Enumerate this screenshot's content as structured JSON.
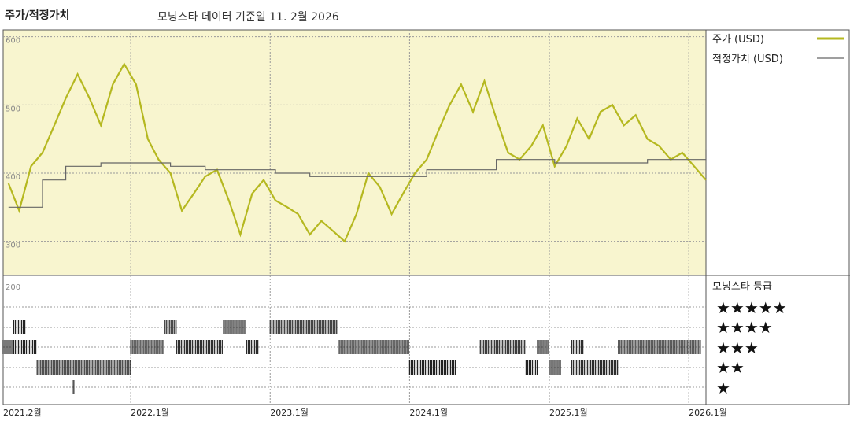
{
  "header": {
    "title": "주가/적정가치",
    "subtitle": "모닝스타 데이터 기준일 11. 2월 2026"
  },
  "colors": {
    "price": "#b5b820",
    "fair_value": "#666666",
    "plot_bg": "#f8f5cf",
    "grid": "#999999",
    "bars": "#222222"
  },
  "legend": {
    "price_label": "주가 (USD)",
    "fair_value_label": "적정가치 (USD)",
    "rating_title": "모닝스타 등급",
    "stars": [
      "★★★★★",
      "★★★★",
      "★★★",
      "★★",
      "★"
    ]
  },
  "chart_data": {
    "type": "line",
    "title": "주가/적정가치",
    "ylim": [
      250,
      610
    ],
    "yticks": [
      "600",
      "500",
      "400",
      "300"
    ],
    "rating_axis_label": "200",
    "xtick_labels": [
      "2021,2월",
      "2022,1월",
      "2023,1월",
      "2024,1월",
      "2025,1월",
      "2026,1월"
    ],
    "x_dates": [
      "2021-02",
      "2022-01",
      "2023-01",
      "2024-01",
      "2025-01",
      "2026-01"
    ],
    "series": [
      {
        "name": "주가 (USD)",
        "points": [
          [
            "2021-02",
            385
          ],
          [
            "2021-03",
            345
          ],
          [
            "2021-04",
            410
          ],
          [
            "2021-05",
            430
          ],
          [
            "2021-06",
            470
          ],
          [
            "2021-07",
            510
          ],
          [
            "2021-08",
            545
          ],
          [
            "2021-09",
            510
          ],
          [
            "2021-10",
            470
          ],
          [
            "2021-11",
            530
          ],
          [
            "2021-12",
            560
          ],
          [
            "2022-01",
            530
          ],
          [
            "2022-02",
            450
          ],
          [
            "2022-03",
            420
          ],
          [
            "2022-04",
            400
          ],
          [
            "2022-05",
            345
          ],
          [
            "2022-06",
            370
          ],
          [
            "2022-07",
            395
          ],
          [
            "2022-08",
            405
          ],
          [
            "2022-09",
            360
          ],
          [
            "2022-10",
            310
          ],
          [
            "2022-11",
            370
          ],
          [
            "2022-12",
            390
          ],
          [
            "2023-01",
            360
          ],
          [
            "2023-02",
            350
          ],
          [
            "2023-03",
            340
          ],
          [
            "2023-04",
            310
          ],
          [
            "2023-05",
            330
          ],
          [
            "2023-06",
            315
          ],
          [
            "2023-07",
            300
          ],
          [
            "2023-08",
            340
          ],
          [
            "2023-09",
            400
          ],
          [
            "2023-10",
            380
          ],
          [
            "2023-11",
            340
          ],
          [
            "2023-12",
            370
          ],
          [
            "2024-01",
            400
          ],
          [
            "2024-02",
            420
          ],
          [
            "2024-03",
            460
          ],
          [
            "2024-04",
            500
          ],
          [
            "2024-05",
            530
          ],
          [
            "2024-06",
            490
          ],
          [
            "2024-07",
            535
          ],
          [
            "2024-08",
            480
          ],
          [
            "2024-09",
            430
          ],
          [
            "2024-10",
            420
          ],
          [
            "2024-11",
            440
          ],
          [
            "2024-12",
            470
          ],
          [
            "2025-01",
            410
          ],
          [
            "2025-02",
            440
          ],
          [
            "2025-03",
            480
          ],
          [
            "2025-04",
            450
          ],
          [
            "2025-05",
            490
          ],
          [
            "2025-06",
            500
          ],
          [
            "2025-07",
            470
          ],
          [
            "2025-08",
            485
          ],
          [
            "2025-09",
            450
          ],
          [
            "2025-10",
            440
          ],
          [
            "2025-11",
            420
          ],
          [
            "2025-12",
            430
          ],
          [
            "2026-01",
            410
          ],
          [
            "2026-02",
            390
          ]
        ]
      },
      {
        "name": "적정가치 (USD)",
        "points": [
          [
            "2021-02",
            350
          ],
          [
            "2021-04",
            350
          ],
          [
            "2021-05",
            390
          ],
          [
            "2021-07",
            410
          ],
          [
            "2021-10",
            415
          ],
          [
            "2022-01",
            415
          ],
          [
            "2022-04",
            410
          ],
          [
            "2022-07",
            405
          ],
          [
            "2023-01",
            400
          ],
          [
            "2023-04",
            395
          ],
          [
            "2023-09",
            395
          ],
          [
            "2024-01",
            395
          ],
          [
            "2024-02",
            405
          ],
          [
            "2024-06",
            405
          ],
          [
            "2024-08",
            420
          ],
          [
            "2024-10",
            420
          ],
          [
            "2025-01",
            415
          ],
          [
            "2025-06",
            415
          ],
          [
            "2025-09",
            420
          ],
          [
            "2026-01",
            420
          ],
          [
            "2026-02",
            435
          ]
        ]
      }
    ],
    "ratings": [
      {
        "stars": 4,
        "periods": [
          [
            "2021-03",
            "2021-04"
          ],
          [
            "2022-04",
            "2022-05"
          ],
          [
            "2022-09",
            "2022-11"
          ],
          [
            "2023-01",
            "2023-07"
          ]
        ]
      },
      {
        "stars": 3,
        "periods": [
          [
            "2021-02",
            "2021-03"
          ],
          [
            "2021-03",
            "2021-05"
          ],
          [
            "2022-01",
            "2022-04"
          ],
          [
            "2022-05",
            "2022-09"
          ],
          [
            "2022-11",
            "2022-12"
          ],
          [
            "2023-07",
            "2024-01"
          ],
          [
            "2024-07",
            "2024-11"
          ],
          [
            "2024-12",
            "2025-01"
          ],
          [
            "2025-03",
            "2025-04"
          ],
          [
            "2025-07",
            "2026-02"
          ]
        ]
      },
      {
        "stars": 2,
        "periods": [
          [
            "2021-05",
            "2022-01"
          ],
          [
            "2024-01",
            "2024-05"
          ],
          [
            "2024-11",
            "2024-12"
          ],
          [
            "2025-01",
            "2025-02"
          ],
          [
            "2025-03",
            "2025-07"
          ]
        ]
      },
      {
        "stars": 1,
        "periods": [
          [
            "2021-08",
            "2021-08"
          ]
        ]
      }
    ]
  }
}
